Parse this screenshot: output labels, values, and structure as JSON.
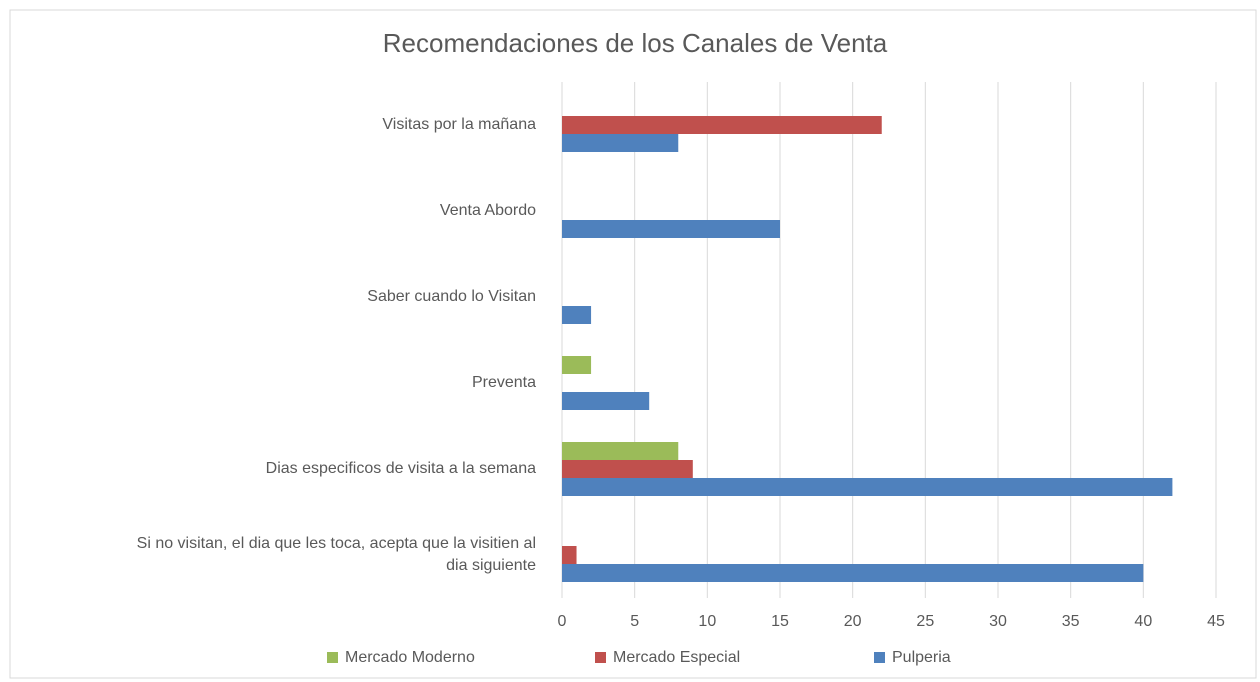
{
  "chart_data": {
    "type": "bar",
    "orientation": "horizontal",
    "title": "Recomendaciones  de los Canales de Venta",
    "categories": [
      "Visitas por la mañana",
      "Venta Abordo",
      "Saber cuando lo Visitan",
      "Preventa",
      "Dias especificos de visita a la semana",
      "Si no visitan, el dia que  les toca,  acepta que la visitien al dia siguiente"
    ],
    "series": [
      {
        "name": "Mercado Moderno",
        "color": "#9bbb59",
        "values": [
          0,
          0,
          0,
          2,
          8,
          0
        ]
      },
      {
        "name": "Mercado Especial",
        "color": "#c0504d",
        "values": [
          22,
          0,
          0,
          0,
          9,
          1
        ]
      },
      {
        "name": "Pulperia",
        "color": "#4f81bd",
        "values": [
          8,
          15,
          2,
          6,
          42,
          40
        ]
      }
    ],
    "xlim": [
      0,
      45
    ],
    "xticks": [
      0,
      5,
      10,
      15,
      20,
      25,
      30,
      35,
      40,
      45
    ],
    "grid": true,
    "legend": "bottom"
  }
}
